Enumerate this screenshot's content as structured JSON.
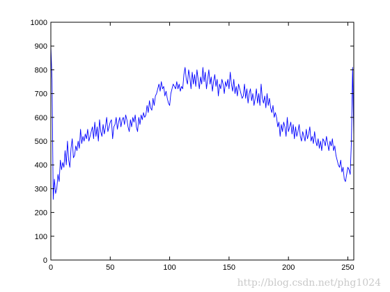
{
  "chart_data": {
    "type": "line",
    "title": "",
    "xlabel": "",
    "ylabel": "",
    "xlim": [
      0,
      255
    ],
    "ylim": [
      0,
      1000
    ],
    "xticks": [
      0,
      50,
      100,
      150,
      200,
      250
    ],
    "yticks": [
      0,
      100,
      200,
      300,
      400,
      500,
      600,
      700,
      800,
      900,
      1000
    ],
    "xtick_labels": [
      "0",
      "50",
      "100",
      "150",
      "200",
      "250"
    ],
    "ytick_labels": [
      "0",
      "100",
      "200",
      "300",
      "400",
      "500",
      "600",
      "700",
      "800",
      "900",
      "1000"
    ],
    "grid": false,
    "legend": null,
    "series": [
      {
        "name": "histogram",
        "color": "#0000ff",
        "x_start": 0,
        "x_step": 1,
        "values": [
          900,
          760,
          255,
          340,
          280,
          300,
          360,
          330,
          420,
          380,
          410,
          390,
          460,
          400,
          500,
          420,
          390,
          470,
          510,
          430,
          440,
          480,
          460,
          500,
          470,
          550,
          490,
          520,
          500,
          530,
          510,
          550,
          500,
          520,
          540,
          560,
          510,
          580,
          520,
          560,
          500,
          590,
          540,
          520,
          570,
          530,
          560,
          600,
          540,
          560,
          580,
          590,
          510,
          560,
          570,
          600,
          550,
          580,
          600,
          560,
          590,
          600,
          570,
          610,
          590,
          560,
          540,
          590,
          560,
          600,
          580,
          610,
          560,
          540,
          600,
          570,
          610,
          590,
          620,
          600,
          610,
          650,
          620,
          670,
          640,
          630,
          680,
          650,
          690,
          700,
          720,
          740,
          710,
          750,
          720,
          730,
          690,
          710,
          680,
          660,
          650,
          700,
          720,
          740,
          730,
          720,
          750,
          720,
          740,
          710,
          730,
          720,
          780,
          810,
          760,
          740,
          800,
          770,
          720,
          790,
          740,
          780,
          730,
          800,
          760,
          720,
          770,
          740,
          810,
          750,
          790,
          720,
          760,
          800,
          740,
          770,
          710,
          750,
          780,
          730,
          760,
          690,
          740,
          720,
          760,
          740,
          700,
          750,
          730,
          760,
          720,
          790,
          740,
          710,
          760,
          700,
          730,
          690,
          740,
          720,
          700,
          680,
          690,
          740,
          680,
          720,
          660,
          700,
          720,
          670,
          700,
          650,
          680,
          720,
          660,
          700,
          650,
          740,
          680,
          660,
          690,
          640,
          700,
          650,
          680,
          640,
          620,
          650,
          600,
          620,
          600,
          560,
          580,
          520,
          570,
          540,
          580,
          560,
          520,
          600,
          540,
          560,
          580,
          530,
          570,
          510,
          560,
          520,
          540,
          570,
          520,
          500,
          540,
          520,
          500,
          550,
          510,
          530,
          560,
          500,
          520,
          490,
          540,
          500,
          480,
          510,
          470,
          500,
          460,
          510,
          500,
          480,
          520,
          490,
          460,
          500,
          480,
          510,
          460,
          480,
          440,
          420,
          400,
          390,
          420,
          370,
          390,
          340,
          330,
          360,
          390,
          380,
          360,
          500,
          810,
          520
        ]
      }
    ]
  },
  "watermark": {
    "text": "http://blog.csdn.net/phg1024"
  }
}
